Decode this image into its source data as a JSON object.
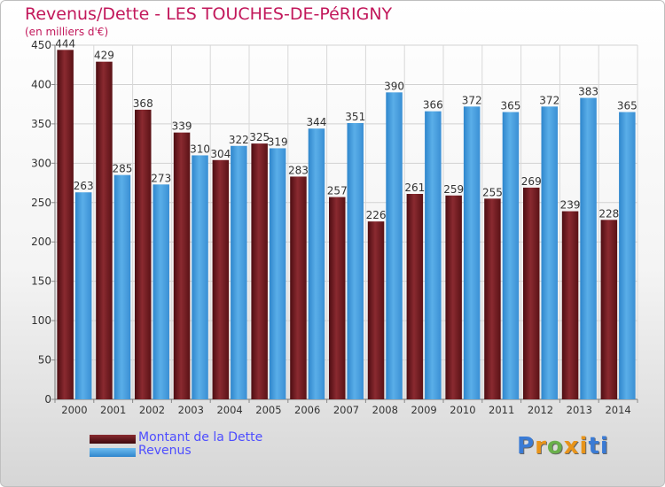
{
  "title": "Revenus/Dette - LES TOUCHES-DE-PéRIGNY",
  "subtitle": "(en milliers d'€)",
  "logo": {
    "text": "Proxiti",
    "colors": [
      "#3a7bd5",
      "#e8941a",
      "#6ab04c",
      "#e8941a",
      "#e8941a",
      "#3a7bd5",
      "#3a7bd5"
    ]
  },
  "legend": [
    {
      "label": "Montant de la Dette",
      "color": "#6b1a1f"
    },
    {
      "label": "Revenus",
      "color": "#4a9fe0"
    }
  ],
  "chart_data": {
    "type": "bar",
    "title": "Revenus/Dette - LES TOUCHES-DE-PéRIGNY",
    "subtitle": "(en milliers d'€)",
    "categories": [
      "2000",
      "2001",
      "2002",
      "2003",
      "2004",
      "2005",
      "2006",
      "2007",
      "2008",
      "2009",
      "2010",
      "2011",
      "2012",
      "2013",
      "2014"
    ],
    "series": [
      {
        "name": "Montant de la Dette",
        "color": "#6b1a1f",
        "values": [
          444,
          429,
          368,
          339,
          304,
          325,
          283,
          257,
          226,
          261,
          259,
          255,
          269,
          239,
          228
        ]
      },
      {
        "name": "Revenus",
        "color": "#4a9fe0",
        "values": [
          263,
          285,
          273,
          310,
          322,
          319,
          344,
          351,
          390,
          366,
          372,
          365,
          372,
          383,
          365
        ]
      }
    ],
    "ylim": [
      0,
      450
    ],
    "yticks": [
      0,
      50,
      100,
      150,
      200,
      250,
      300,
      350,
      400,
      450
    ],
    "grid": true,
    "legend_position": "bottom-left"
  }
}
